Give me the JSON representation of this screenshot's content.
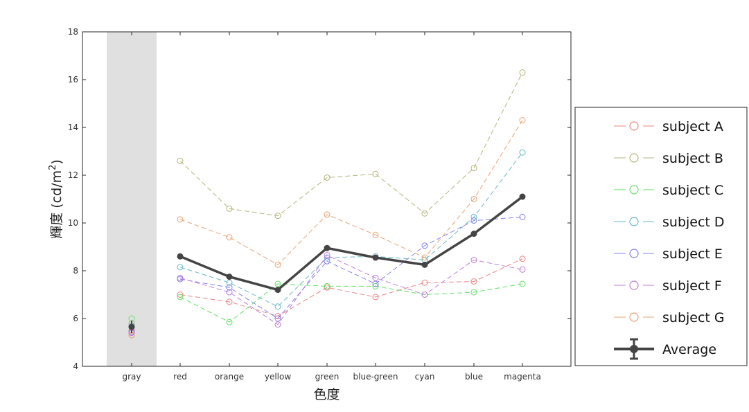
{
  "chart_data": {
    "type": "line",
    "xlabel": "色度",
    "ylabel": "輝度 (cd/m",
    "ylabel_sup": "2",
    "ylabel_close": ")",
    "categories": [
      "gray",
      "red",
      "orange",
      "yellow",
      "green",
      "blue-green",
      "cyan",
      "blue",
      "magenta"
    ],
    "ylim": [
      4,
      18
    ],
    "yticks": [
      4,
      6,
      8,
      10,
      12,
      14,
      16,
      18
    ],
    "grid": false,
    "highlight_band": {
      "category": "gray",
      "color": "#e0e0e0"
    },
    "legend_position": "outside-right",
    "series": [
      {
        "name": "subject A",
        "color": "#f08080",
        "style": "dashed-circle",
        "values": [
          5.5,
          7.0,
          6.7,
          6.1,
          7.3,
          6.9,
          7.5,
          7.55,
          8.5
        ]
      },
      {
        "name": "subject B",
        "color": "#b4b478",
        "style": "dashed-circle",
        "values": [
          5.8,
          12.6,
          10.6,
          10.3,
          11.9,
          12.05,
          10.4,
          12.3,
          16.3
        ]
      },
      {
        "name": "subject C",
        "color": "#66e066",
        "style": "dashed-circle",
        "values": [
          6.0,
          6.9,
          5.85,
          7.45,
          7.35,
          7.35,
          7.0,
          7.1,
          7.45
        ]
      },
      {
        "name": "subject D",
        "color": "#66b8c8",
        "style": "dashed-circle",
        "values": [
          5.7,
          8.15,
          7.5,
          6.5,
          8.55,
          8.6,
          8.45,
          10.25,
          12.95
        ]
      },
      {
        "name": "subject E",
        "color": "#8080ee",
        "style": "dashed-circle",
        "values": [
          5.45,
          7.65,
          7.3,
          6.0,
          8.4,
          7.45,
          9.05,
          10.1,
          10.25
        ]
      },
      {
        "name": "subject F",
        "color": "#c07ad8",
        "style": "dashed-circle",
        "values": [
          5.4,
          7.7,
          7.1,
          5.75,
          8.65,
          7.7,
          7.0,
          8.45,
          8.05
        ]
      },
      {
        "name": "subject G",
        "color": "#eaa070",
        "style": "dashed-circle",
        "values": [
          5.3,
          10.15,
          9.4,
          8.25,
          10.35,
          9.5,
          8.55,
          11.0,
          14.3
        ]
      },
      {
        "name": "Average",
        "color": "#444444",
        "style": "solid-errorbar",
        "values": [
          5.65,
          8.6,
          7.75,
          7.2,
          8.95,
          8.55,
          8.25,
          9.55,
          11.1
        ]
      }
    ]
  }
}
